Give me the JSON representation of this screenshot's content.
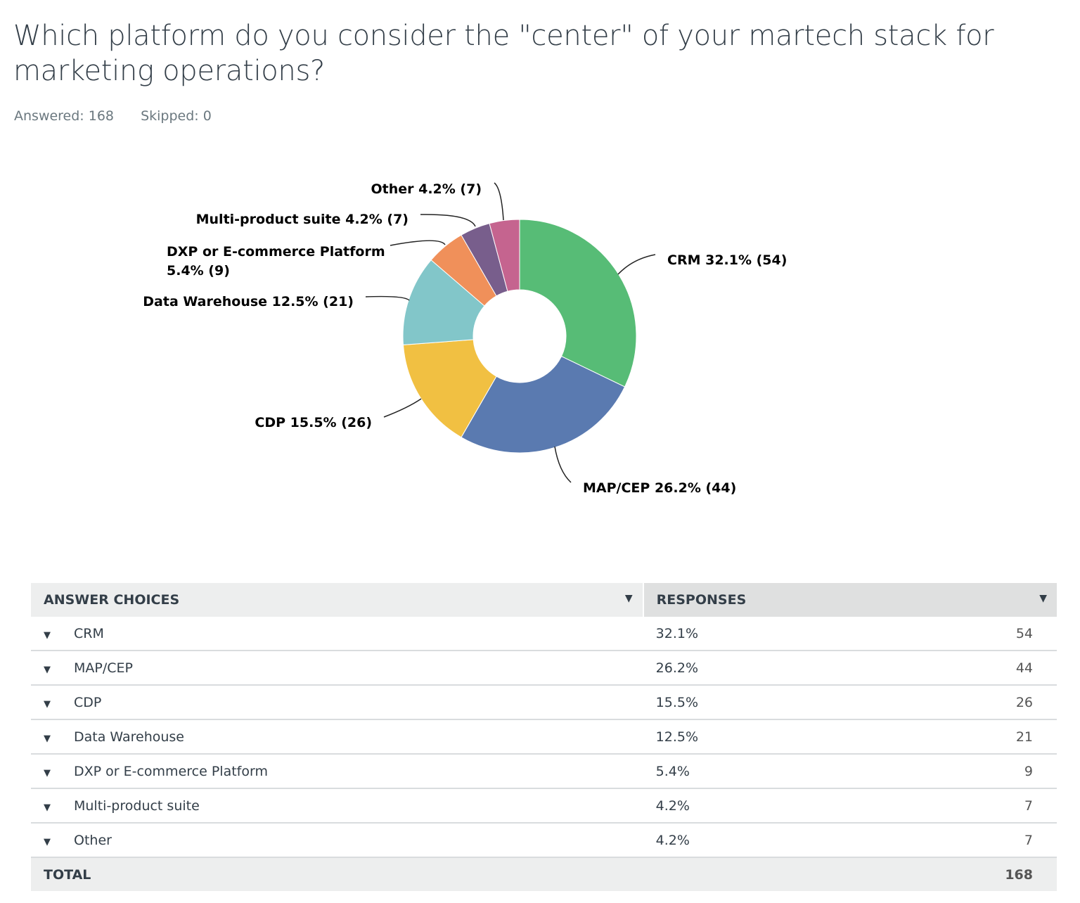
{
  "question": {
    "title": "Which platform do you consider the \"center\" of your martech stack for marketing operations?",
    "answered": "Answered: 168",
    "skipped": "Skipped: 0"
  },
  "chart_data": {
    "type": "pie",
    "donut": true,
    "categories": [
      "CRM",
      "MAP/CEP",
      "CDP",
      "Data Warehouse",
      "DXP or E-commerce Platform",
      "Multi-product suite",
      "Other"
    ],
    "values": [
      54,
      44,
      26,
      21,
      9,
      7,
      7
    ],
    "percents": [
      "32.1%",
      "26.2%",
      "15.5%",
      "12.5%",
      "5.4%",
      "4.2%",
      "4.2%"
    ],
    "labels": [
      "CRM 32.1% (54)",
      "MAP/CEP 26.2% (44)",
      "CDP 15.5% (26)",
      "Data Warehouse 12.5% (21)",
      "DXP or E-commerce Platform",
      "Multi-product suite 4.2% (7)",
      "Other 4.2% (7)"
    ],
    "label_extra": {
      "dxp_line2": "5.4% (9)"
    },
    "colors": [
      "#57bc76",
      "#5a7ab0",
      "#f1c042",
      "#82c6c9",
      "#f0905a",
      "#785e8c",
      "#c5648f"
    ]
  },
  "table": {
    "headers": [
      "ANSWER CHOICES",
      "RESPONSES"
    ],
    "rows": [
      {
        "name": "CRM",
        "pct": "32.1%",
        "count": "54"
      },
      {
        "name": "MAP/CEP",
        "pct": "26.2%",
        "count": "44"
      },
      {
        "name": "CDP",
        "pct": "15.5%",
        "count": "26"
      },
      {
        "name": "Data Warehouse",
        "pct": "12.5%",
        "count": "21"
      },
      {
        "name": "DXP or E-commerce Platform",
        "pct": "5.4%",
        "count": "9"
      },
      {
        "name": "Multi-product suite",
        "pct": "4.2%",
        "count": "7"
      },
      {
        "name": "Other",
        "pct": "4.2%",
        "count": "7"
      }
    ],
    "total_label": "TOTAL",
    "total": "168"
  }
}
